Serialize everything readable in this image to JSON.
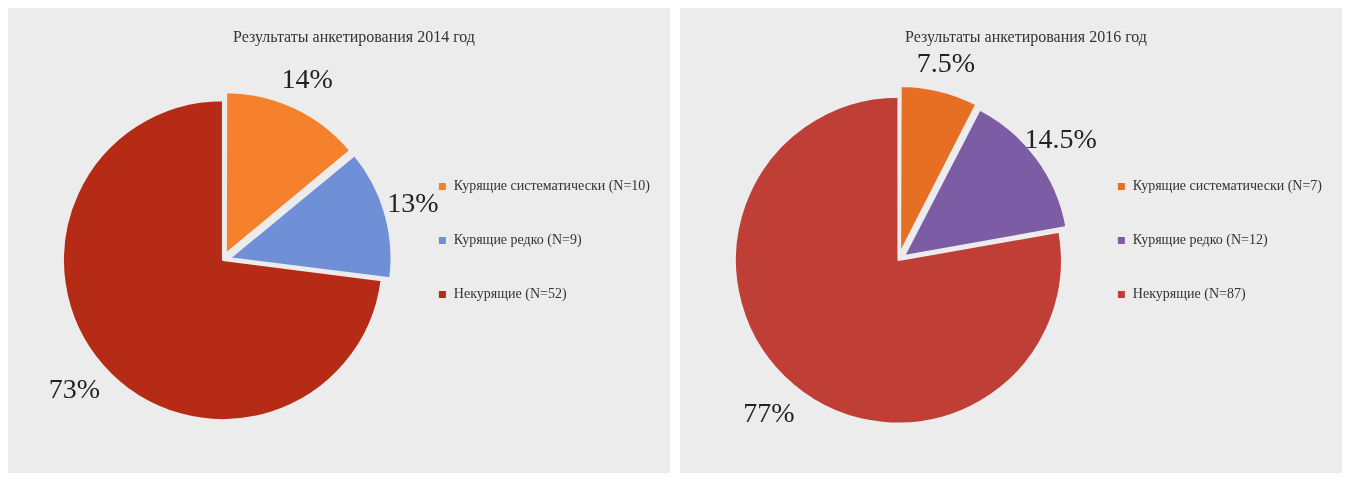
{
  "chart_data": [
    {
      "type": "pie",
      "title": "Результаты анкетирования 2014 год",
      "categories": [
        "Курящие систематически (N=10)",
        "Курящие редко (N=9)",
        "Некурящие (N=52)"
      ],
      "values": [
        14,
        13,
        73
      ],
      "value_labels": [
        "14%",
        "13%",
        "73%"
      ],
      "colors": [
        "#f5812c",
        "#6f8fd6",
        "#b52b16"
      ],
      "legend": "right"
    },
    {
      "type": "pie",
      "title": "Результаты анкетирования 2016 год",
      "categories": [
        "Курящие систематически (N=7)",
        "Курящие редко (N=12)",
        "Некурящие (N=87)"
      ],
      "values": [
        7.5,
        14.5,
        77
      ],
      "value_labels": [
        "7.5%",
        "14.5%",
        "77%"
      ],
      "colors": [
        "#e66f24",
        "#7d5ca6",
        "#bf3f36"
      ],
      "legend": "right"
    }
  ]
}
